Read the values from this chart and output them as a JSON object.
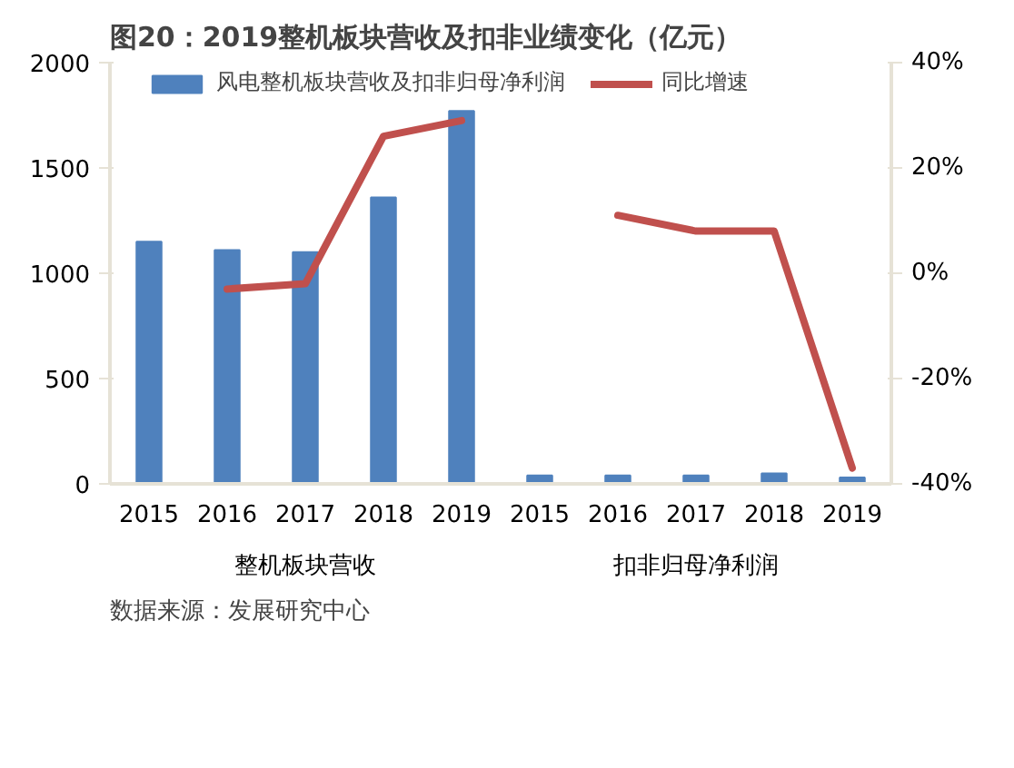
{
  "chart_data": {
    "type": "bar",
    "title": "图20：2019整机板块营收及扣非业绩变化（亿元）",
    "categories": [
      "2015",
      "2016",
      "2017",
      "2018",
      "2019",
      "2015",
      "2016",
      "2017",
      "2018",
      "2019"
    ],
    "series": [
      {
        "name": "风电整机板块营收及扣非归母净利润",
        "color": "#4f81bd",
        "values": [
          1150,
          1110,
          1100,
          1360,
          1770,
          40,
          40,
          40,
          50,
          30
        ]
      },
      {
        "name": "同比增速",
        "type": "line",
        "axis": "y2",
        "color": "#c0504d",
        "values": [
          null,
          -3,
          -2,
          26,
          29,
          null,
          11,
          8,
          8,
          -37
        ]
      }
    ],
    "ylim": [
      0,
      2000
    ],
    "yticks": [
      0,
      500,
      1000,
      1500,
      2000
    ],
    "y2lim": [
      -40,
      40
    ],
    "y2ticks": [
      {
        "value": -40,
        "label": "-40%"
      },
      {
        "value": -20,
        "label": "-20%"
      },
      {
        "value": 0,
        "label": "0%"
      },
      {
        "value": 20,
        "label": "20%"
      },
      {
        "value": 40,
        "label": "40%"
      }
    ],
    "annotations": [
      "整机板块营收",
      "扣非归母净利润",
      "数据来源：发展研究中心"
    ],
    "legend": "top",
    "grid": false,
    "marker": "none",
    "line_style": "solid"
  }
}
